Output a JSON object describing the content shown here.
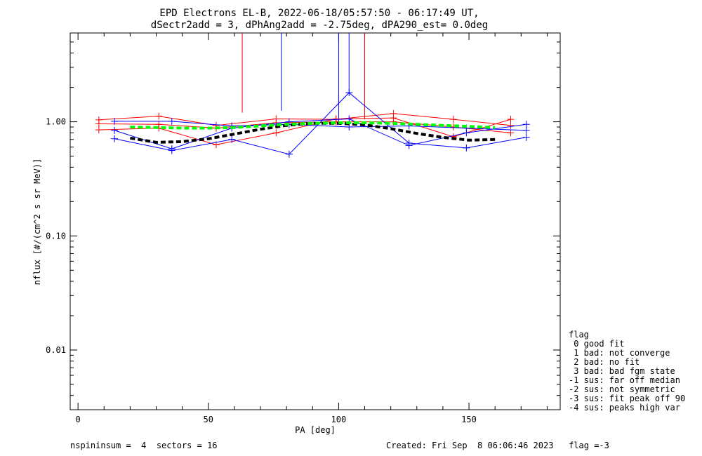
{
  "chart_data": {
    "type": "line",
    "title_line1": "EPD Electrons EL-B, 2022-06-18/05:57:50 - 06:17:49 UT,",
    "title_line2": "dSectr2add = 3, dPhAng2add = -2.75deg, dPA290_est=   0.0deg",
    "xlabel": "PA [deg]",
    "ylabel": "nflux [#/(cm^2 s sr MeV)]",
    "xlim": [
      -3,
      185
    ],
    "ylim": [
      0.003,
      6.0
    ],
    "yscale": "log",
    "xticks": [
      0,
      50,
      100,
      150
    ],
    "xtick_labels": [
      "0",
      "50",
      "100",
      "150"
    ],
    "yticks": [
      0.01,
      0.1,
      1.0
    ],
    "ytick_labels": [
      "0.01",
      "0.10",
      "1.00"
    ],
    "series": [
      {
        "color": "#ff0000",
        "style": "thin-plus",
        "x": [
          8,
          31,
          53,
          76,
          99,
          121,
          144,
          166
        ],
        "y": [
          1.04,
          1.12,
          0.93,
          1.06,
          1.05,
          1.18,
          1.05,
          0.93
        ]
      },
      {
        "color": "#ff0000",
        "style": "thin-plus",
        "x": [
          8,
          31,
          53,
          76,
          99,
          121,
          144,
          166
        ],
        "y": [
          0.85,
          0.88,
          0.63,
          0.8,
          1.06,
          1.08,
          0.74,
          1.05
        ]
      },
      {
        "color": "#ff0000",
        "style": "thin-plus",
        "x": [
          8,
          31,
          53,
          76,
          99,
          121,
          144,
          166
        ],
        "y": [
          0.96,
          0.95,
          0.88,
          0.98,
          1.0,
          1.0,
          0.9,
          0.8
        ]
      },
      {
        "color": "#0000ff",
        "style": "thin-plus",
        "x": [
          14,
          36,
          59,
          81,
          104,
          127,
          149,
          172
        ],
        "y": [
          0.71,
          0.56,
          0.7,
          0.52,
          1.8,
          0.65,
          0.59,
          0.73
        ]
      },
      {
        "color": "#0000ff",
        "style": "thin-plus",
        "x": [
          14,
          36,
          59,
          81,
          104,
          127,
          149,
          172
        ],
        "y": [
          0.84,
          0.58,
          0.88,
          1.0,
          1.06,
          0.62,
          0.8,
          0.95
        ]
      },
      {
        "color": "#0000ff",
        "style": "thin-plus",
        "x": [
          14,
          36,
          59,
          81,
          104,
          127,
          149,
          172
        ],
        "y": [
          1.01,
          1.01,
          0.92,
          0.95,
          0.9,
          0.92,
          0.88,
          0.84
        ]
      },
      {
        "color": "#000000",
        "style": "thick-dash",
        "x": [
          20,
          30,
          40,
          50,
          60,
          70,
          80,
          90,
          100,
          110,
          120,
          130,
          140,
          150,
          160
        ],
        "y": [
          0.72,
          0.66,
          0.67,
          0.71,
          0.78,
          0.86,
          0.93,
          0.97,
          0.97,
          0.94,
          0.87,
          0.79,
          0.73,
          0.69,
          0.7
        ]
      },
      {
        "color": "#00ff00",
        "style": "thick-dash",
        "x": [
          20,
          30,
          40,
          50,
          60,
          70,
          80,
          90,
          100,
          110,
          120,
          130,
          140,
          150,
          160
        ],
        "y": [
          0.9,
          0.89,
          0.88,
          0.88,
          0.89,
          0.92,
          0.95,
          0.97,
          0.98,
          0.98,
          0.97,
          0.95,
          0.93,
          0.91,
          0.89
        ]
      }
    ],
    "error_bars": [
      {
        "color": "#ff0000",
        "x": 63,
        "y_low": 1.2,
        "y_high": 6.0
      },
      {
        "color": "#0000ff",
        "x": 78,
        "y_low": 1.25,
        "y_high": 6.0
      },
      {
        "color": "#0000ff",
        "x": 100,
        "y_low": 1.0,
        "y_high": 6.0
      },
      {
        "color": "#0000ff",
        "x": 104,
        "y_low": 1.85,
        "y_high": 6.0
      },
      {
        "color": "#ff0000",
        "x": 110,
        "y_low": 1.05,
        "y_high": 6.0
      }
    ],
    "legend": {
      "title": "flag",
      "entries": [
        " 0 good fit",
        " 1 bad: not converge",
        " 2 bad: no fit",
        " 3 bad: bad fgm state",
        "-1 sus: far off median",
        "-2 sus: not symmetric",
        "-3 sus: fit peak off 90",
        "-4 sus: peaks high var"
      ],
      "placement": "right"
    },
    "footer_left": "nspininsum =  4  sectors = 16",
    "footer_right": "Created: Fri Sep  8 06:06:46 2023   flag =-3"
  }
}
